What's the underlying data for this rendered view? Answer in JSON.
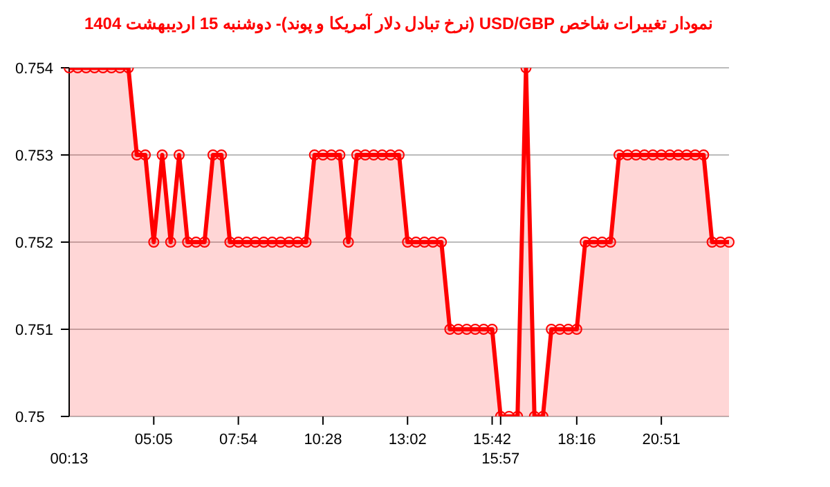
{
  "chart_data": {
    "type": "area",
    "title": "نمودار تغییرات شاخص USD/GBP (نرخ تبادل دلار آمریکا و پوند)- دوشنبه  15 اردیبهشت 1404",
    "categories": [
      "00:13",
      null,
      null,
      null,
      null,
      null,
      null,
      null,
      null,
      null,
      "05:05",
      null,
      null,
      null,
      null,
      null,
      null,
      null,
      null,
      null,
      "07:54",
      null,
      null,
      null,
      null,
      null,
      null,
      null,
      null,
      null,
      "10:28",
      null,
      null,
      null,
      null,
      null,
      null,
      null,
      null,
      null,
      "13:02",
      null,
      null,
      null,
      null,
      null,
      null,
      null,
      null,
      null,
      "15:42",
      "15:57",
      null,
      null,
      null,
      null,
      null,
      null,
      null,
      null,
      "18:16",
      null,
      null,
      null,
      null,
      null,
      null,
      null,
      null,
      null,
      "20:51",
      null,
      null,
      null,
      null,
      null,
      null,
      null,
      null
    ],
    "series": [
      {
        "color": "#ff0000",
        "values": [
          0.754,
          0.754,
          0.754,
          0.754,
          0.754,
          0.754,
          0.754,
          0.754,
          0.753,
          0.753,
          0.752,
          0.753,
          0.752,
          0.753,
          0.752,
          0.752,
          0.752,
          0.753,
          0.753,
          0.752,
          0.752,
          0.752,
          0.752,
          0.752,
          0.752,
          0.752,
          0.752,
          0.752,
          0.752,
          0.753,
          0.753,
          0.753,
          0.753,
          0.752,
          0.753,
          0.753,
          0.753,
          0.753,
          0.753,
          0.753,
          0.752,
          0.752,
          0.752,
          0.752,
          0.752,
          0.751,
          0.751,
          0.751,
          0.751,
          0.751,
          0.751,
          0.75,
          0.75,
          0.75,
          0.754,
          0.75,
          0.75,
          0.751,
          0.751,
          0.751,
          0.751,
          0.752,
          0.752,
          0.752,
          0.752,
          0.753,
          0.753,
          0.753,
          0.753,
          0.753,
          0.753,
          0.753,
          0.753,
          0.753,
          0.753,
          0.753,
          0.752,
          0.752,
          0.752
        ]
      }
    ],
    "ylim": [
      0.75,
      0.754
    ],
    "yticks": [
      0.75,
      0.751,
      0.752,
      0.753,
      0.754
    ],
    "grid": "y",
    "legend": false,
    "marker": "circle",
    "line_style": "solid"
  }
}
